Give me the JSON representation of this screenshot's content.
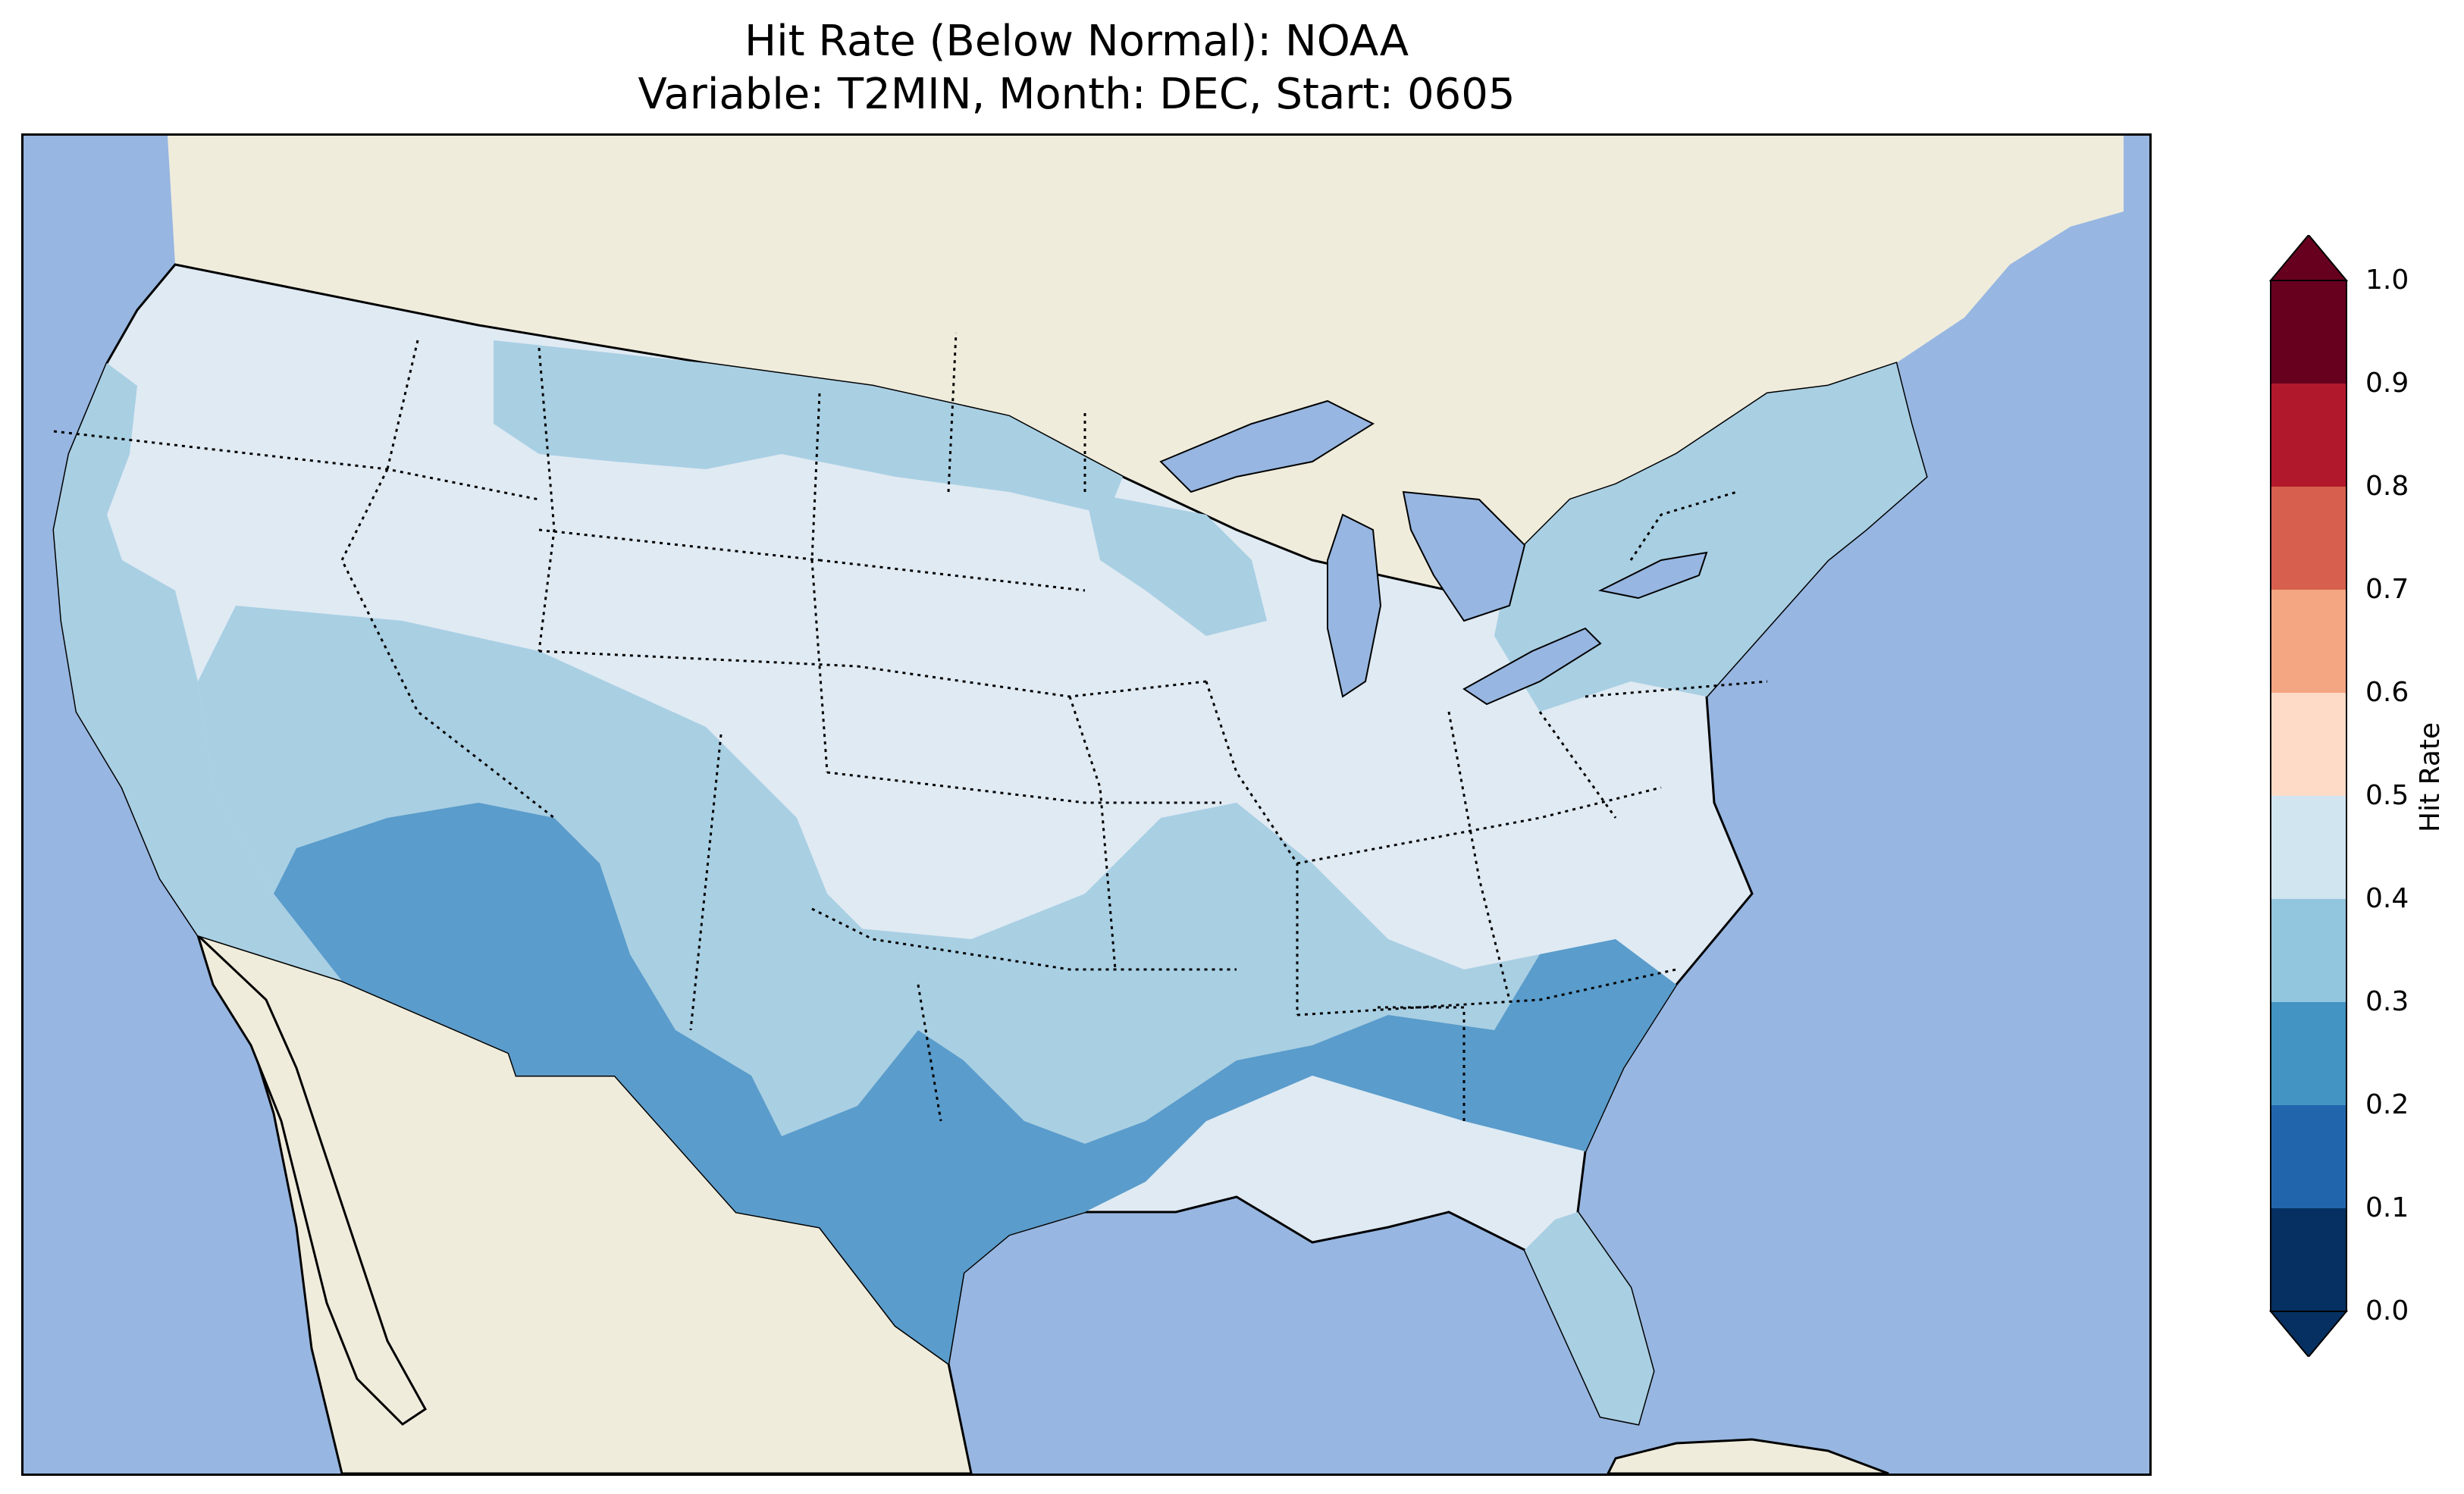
{
  "figure": {
    "title_line1": "Hit Rate (Below Normal): NOAA",
    "title_line2": "Variable: T2MIN, Month: DEC, Start: 0605"
  },
  "colorbar": {
    "label": "Hit Rate",
    "ticks": [
      "0.0",
      "0.1",
      "0.2",
      "0.3",
      "0.4",
      "0.5",
      "0.6",
      "0.7",
      "0.8",
      "0.9",
      "1.0"
    ],
    "bins": [
      {
        "range": [
          0.0,
          0.1
        ],
        "color": "#053061"
      },
      {
        "range": [
          0.1,
          0.2
        ],
        "color": "#2166ac"
      },
      {
        "range": [
          0.2,
          0.3
        ],
        "color": "#4393c3"
      },
      {
        "range": [
          0.3,
          0.4
        ],
        "color": "#92c5de"
      },
      {
        "range": [
          0.4,
          0.5
        ],
        "color": "#d1e5f0"
      },
      {
        "range": [
          0.5,
          0.6
        ],
        "color": "#fddbc7"
      },
      {
        "range": [
          0.6,
          0.7
        ],
        "color": "#f4a582"
      },
      {
        "range": [
          0.7,
          0.8
        ],
        "color": "#d6604d"
      },
      {
        "range": [
          0.8,
          0.9
        ],
        "color": "#b2182b"
      },
      {
        "range": [
          0.9,
          1.0
        ],
        "color": "#67001f"
      }
    ],
    "extend": "both"
  },
  "map": {
    "ocean_color": "#97b6e1",
    "land_color": "#efecdc",
    "regions": [
      {
        "area": "Pacific Northwest, Northern Rockies, Upper Midwest, Great Lakes, Ohio Valley",
        "hit_rate_bin": "0.4-0.5"
      },
      {
        "area": "California coast, Great Basin margins, Southern Plains, Northeast",
        "hit_rate_bin": "0.3-0.4"
      },
      {
        "area": "Arizona, New Mexico, Texas, Gulf Coast, Georgia",
        "hit_rate_bin": "0.2-0.3"
      },
      {
        "area": "Florida peninsula",
        "hit_rate_bin": "0.3-0.4"
      }
    ]
  }
}
